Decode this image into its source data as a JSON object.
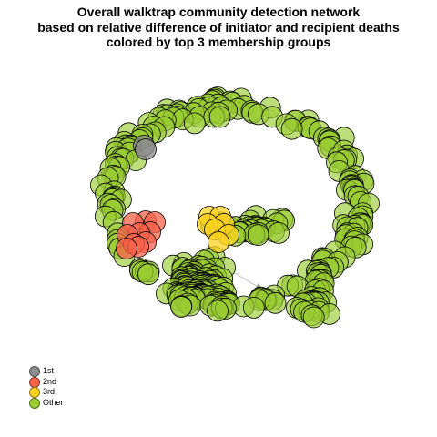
{
  "chart_data": {
    "type": "scatter",
    "title": [
      "Overall walktrap community detection network",
      "based on relative difference of initiator and recipient deaths",
      "colored by top 3 membership groups"
    ],
    "xlabel": "",
    "ylabel": "",
    "grid": false,
    "axes_shown": false,
    "legend_placement": "bottom-left",
    "series": [
      {
        "name": "1st",
        "color": "#8c8c8c",
        "node_count": 2
      },
      {
        "name": "2nd",
        "color": "#f8614a",
        "node_count": 10
      },
      {
        "name": "3rd",
        "color": "#fed31d",
        "node_count": 7
      },
      {
        "name": "Other",
        "color": "#9acd32",
        "node_count": 360
      }
    ],
    "edge_color": "#8f8f8f"
  },
  "legend": {
    "items": [
      {
        "label": "1st",
        "color": "#8c8c8c"
      },
      {
        "label": "2nd",
        "color": "#f8614a"
      },
      {
        "label": "3rd",
        "color": "#fed31d"
      },
      {
        "label": "Other",
        "color": "#9acd32"
      }
    ]
  }
}
